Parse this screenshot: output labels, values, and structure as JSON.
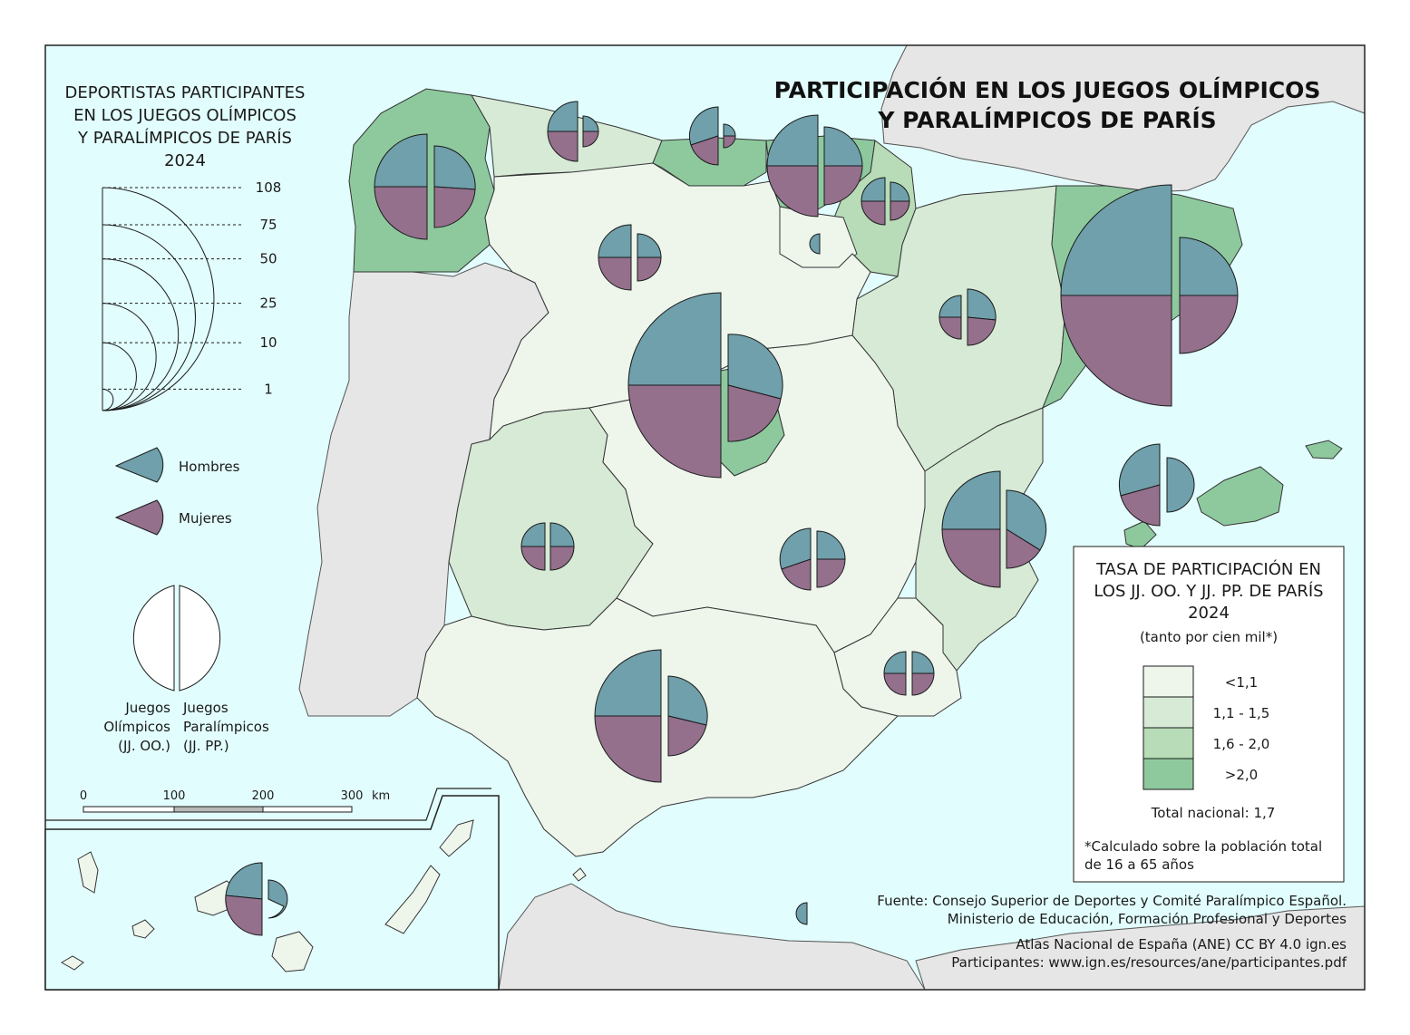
{
  "title": {
    "line1": "PARTICIPACIÓN EN LOS JUEGOS OLÍMPICOS",
    "line2": "Y PARALÍMPICOS DE PARÍS"
  },
  "size_legend": {
    "title_lines": [
      "DEPORTISTAS PARTICIPANTES",
      "EN LOS JUEGOS OLÍMPICOS",
      "Y PARALÍMPICOS DE PARÍS",
      "2024"
    ],
    "values": [
      108,
      75,
      50,
      25,
      10,
      1
    ]
  },
  "gender_legend": {
    "men_label": "Hombres",
    "women_label": "Mujeres"
  },
  "games_legend": {
    "olympic_lines": [
      "Juegos",
      "Olímpicos",
      "(JJ. OO.)"
    ],
    "paralympic_lines": [
      "Juegos",
      "Paralímpicos",
      "(JJ. PP.)"
    ]
  },
  "scale_bar": {
    "ticks": [
      "0",
      "100",
      "200",
      "300"
    ],
    "unit": "km"
  },
  "rate_legend": {
    "title_lines": [
      "TASA DE PARTICIPACIÓN EN",
      "LOS JJ. OO. Y JJ. PP. DE PARÍS",
      "2024",
      "(tanto por cien mil*)"
    ],
    "classes": [
      {
        "label": "<1,1",
        "color": "#eef6ec"
      },
      {
        "label": "1,1 - 1,5",
        "color": "#d6ead6"
      },
      {
        "label": "1,6 - 2,0",
        "color": "#b7dcb7"
      },
      {
        "label": ">2,0",
        "color": "#8ec99e"
      }
    ],
    "total": "Total nacional: 1,7",
    "note_lines": [
      "*Calculado sobre la población total",
      "de 16 a 65 años"
    ]
  },
  "source": {
    "lines": [
      "Fuente: Consejo Superior de Deportes y Comité Paralímpico Español.",
      "Ministerio de Educación, Formación Profesional y Deportes"
    ],
    "credit_lines": [
      "Atlas Nacional de España (ANE) CC BY 4.0 ign.es",
      "Participantes: www.ign.es/resources/ane/participantes.pdf"
    ]
  },
  "colors": {
    "sea": "#e2fdfd",
    "foreign_land": "#e6e6e6",
    "men": "#6fa0ab",
    "women": "#94708d",
    "outline": "#1a1a1a"
  }
}
